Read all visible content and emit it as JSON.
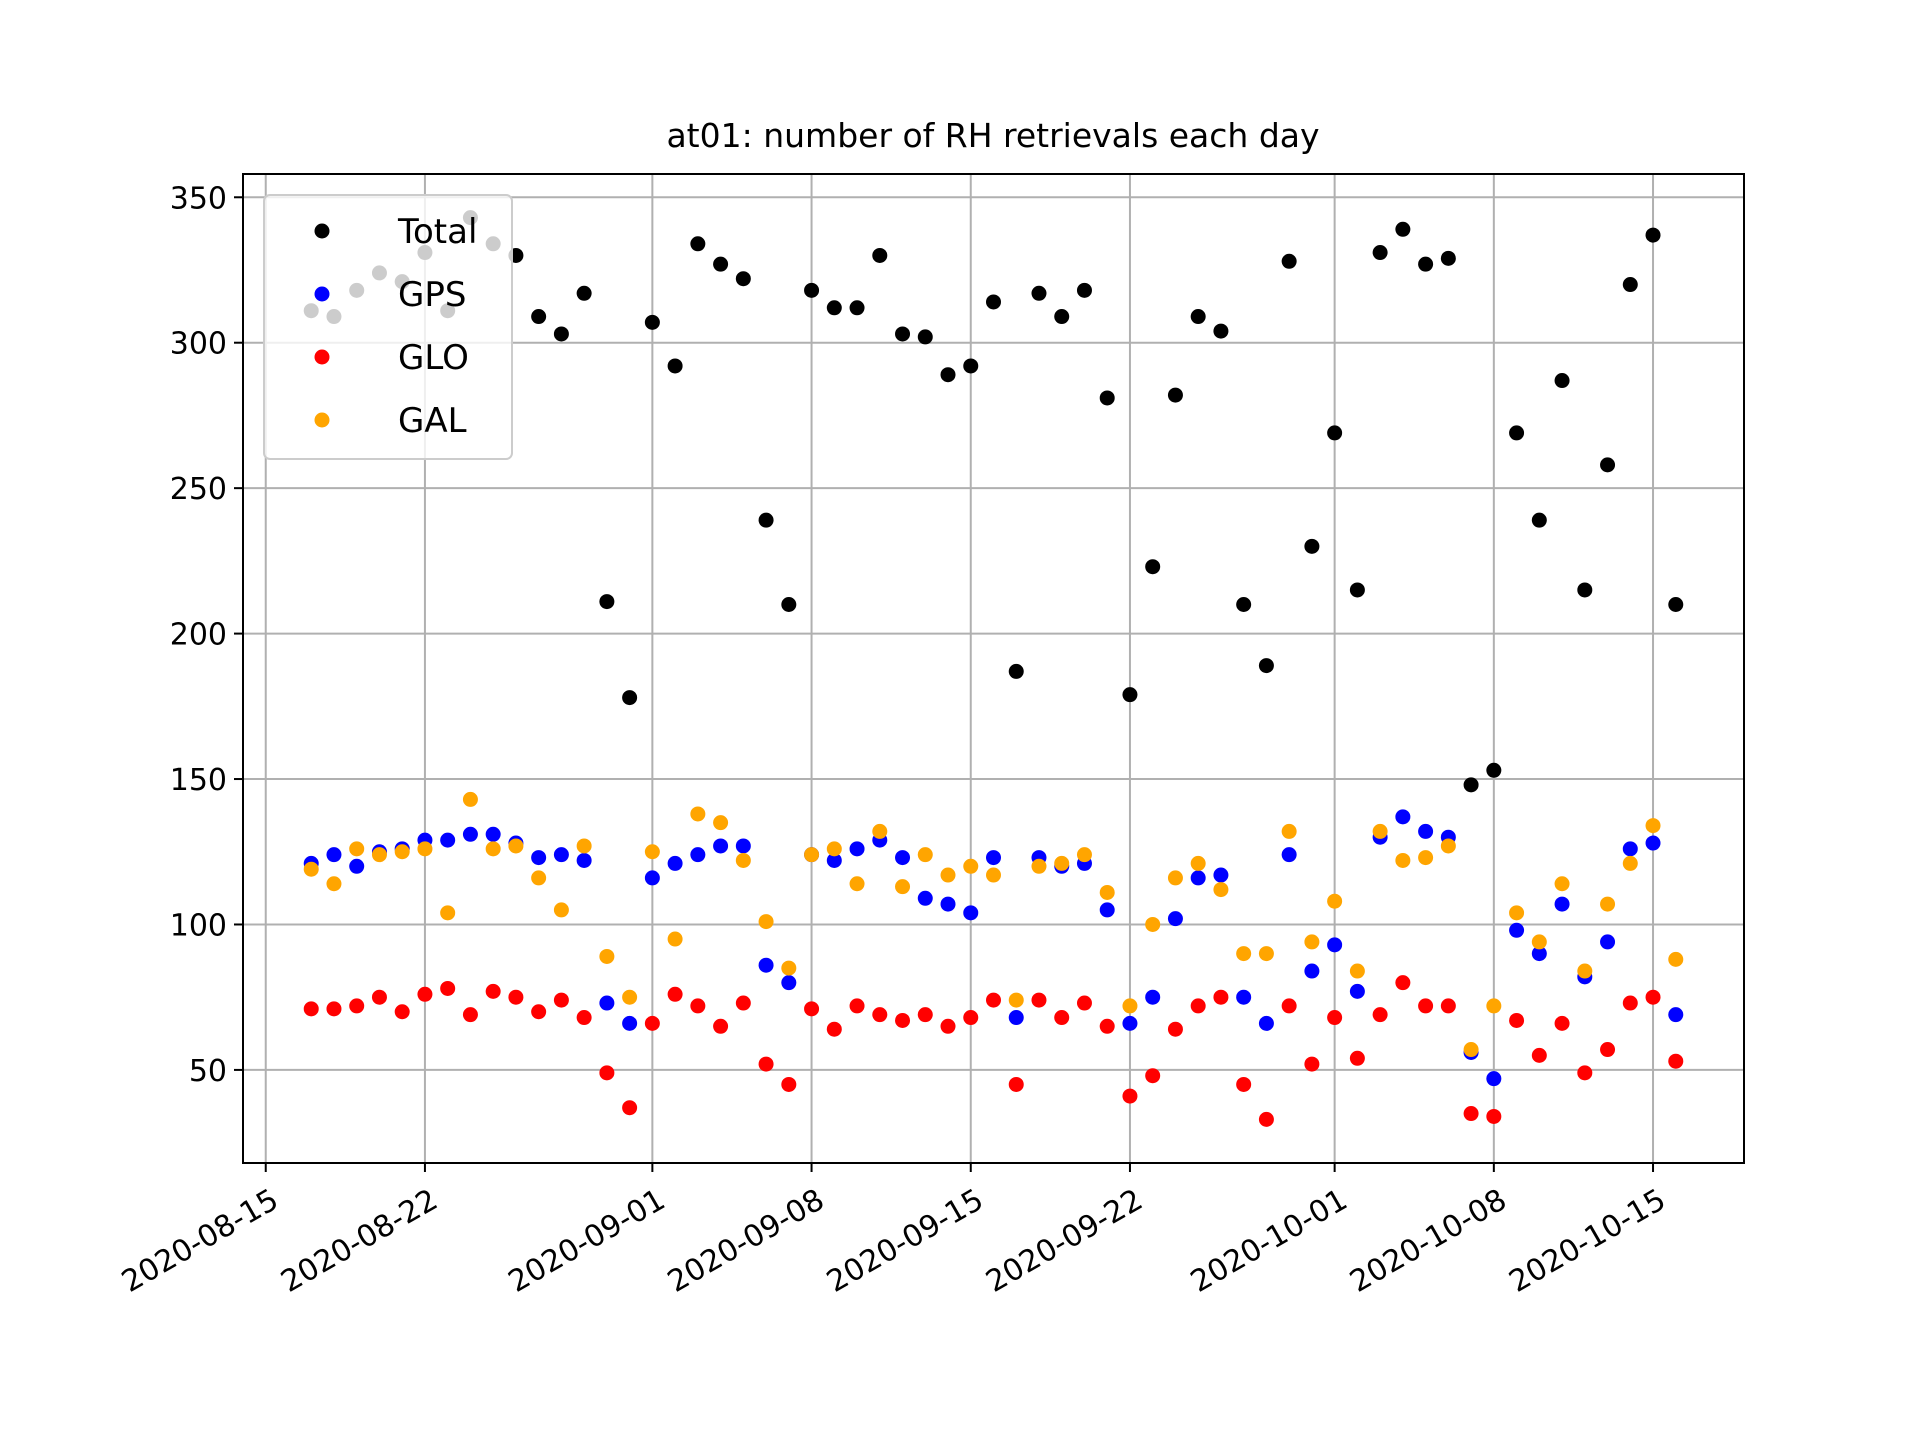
{
  "chart_data": {
    "type": "scatter",
    "title": "at01: number of RH retrievals each day",
    "xlabel": "",
    "ylabel": "",
    "x_type": "date",
    "xlim": [
      "2020-08-14",
      "2020-10-19"
    ],
    "ylim": [
      18,
      358
    ],
    "x_ticks": [
      "2020-08-15",
      "2020-08-22",
      "2020-09-01",
      "2020-09-08",
      "2020-09-15",
      "2020-09-22",
      "2020-10-01",
      "2020-10-08",
      "2020-10-15"
    ],
    "y_ticks": [
      50,
      100,
      150,
      200,
      250,
      300,
      350
    ],
    "grid": true,
    "legend_position": "upper-left",
    "x": [
      "2020-08-17",
      "2020-08-18",
      "2020-08-19",
      "2020-08-20",
      "2020-08-21",
      "2020-08-22",
      "2020-08-23",
      "2020-08-24",
      "2020-08-25",
      "2020-08-26",
      "2020-08-27",
      "2020-08-28",
      "2020-08-29",
      "2020-08-30",
      "2020-08-31",
      "2020-09-01",
      "2020-09-02",
      "2020-09-03",
      "2020-09-04",
      "2020-09-05",
      "2020-09-06",
      "2020-09-07",
      "2020-09-08",
      "2020-09-09",
      "2020-09-10",
      "2020-09-11",
      "2020-09-12",
      "2020-09-13",
      "2020-09-14",
      "2020-09-15",
      "2020-09-16",
      "2020-09-17",
      "2020-09-18",
      "2020-09-19",
      "2020-09-20",
      "2020-09-21",
      "2020-09-22",
      "2020-09-23",
      "2020-09-24",
      "2020-09-25",
      "2020-09-26",
      "2020-09-27",
      "2020-09-28",
      "2020-09-29",
      "2020-09-30",
      "2020-10-01",
      "2020-10-02",
      "2020-10-03",
      "2020-10-04",
      "2020-10-05",
      "2020-10-06",
      "2020-10-07",
      "2020-10-08",
      "2020-10-09",
      "2020-10-10",
      "2020-10-11",
      "2020-10-12",
      "2020-10-13",
      "2020-10-14",
      "2020-10-15",
      "2020-10-16"
    ],
    "series": [
      {
        "name": "Total",
        "color": "#000000",
        "values": [
          311,
          309,
          318,
          324,
          321,
          331,
          311,
          343,
          334,
          330,
          309,
          303,
          317,
          211,
          178,
          307,
          292,
          334,
          327,
          322,
          239,
          210,
          318,
          312,
          312,
          330,
          303,
          302,
          289,
          292,
          314,
          187,
          317,
          309,
          318,
          281,
          179,
          223,
          282,
          309,
          304,
          210,
          189,
          328,
          230,
          269,
          215,
          331,
          339,
          327,
          329,
          148,
          153,
          269,
          239,
          287,
          215,
          258,
          320,
          337,
          210
        ]
      },
      {
        "name": "GPS",
        "color": "#0000ff",
        "values": [
          121,
          124,
          120,
          125,
          126,
          129,
          129,
          131,
          131,
          128,
          123,
          124,
          122,
          73,
          66,
          116,
          121,
          124,
          127,
          127,
          86,
          80,
          124,
          122,
          126,
          129,
          123,
          109,
          107,
          104,
          123,
          68,
          123,
          120,
          121,
          105,
          66,
          75,
          102,
          116,
          117,
          75,
          66,
          124,
          84,
          93,
          77,
          130,
          137,
          132,
          130,
          56,
          47,
          98,
          90,
          107,
          82,
          94,
          126,
          128,
          69
        ]
      },
      {
        "name": "GLO",
        "color": "#ff0000",
        "values": [
          71,
          71,
          72,
          75,
          70,
          76,
          78,
          69,
          77,
          75,
          70,
          74,
          68,
          49,
          37,
          66,
          76,
          72,
          65,
          73,
          52,
          45,
          71,
          64,
          72,
          69,
          67,
          69,
          65,
          68,
          74,
          45,
          74,
          68,
          73,
          65,
          41,
          48,
          64,
          72,
          75,
          45,
          33,
          72,
          52,
          68,
          54,
          69,
          80,
          72,
          72,
          35,
          34,
          67,
          55,
          66,
          49,
          57,
          73,
          75,
          53
        ]
      },
      {
        "name": "GAL",
        "color": "#ffa500",
        "values": [
          119,
          114,
          126,
          124,
          125,
          126,
          104,
          143,
          126,
          127,
          116,
          105,
          127,
          89,
          75,
          125,
          95,
          138,
          135,
          122,
          101,
          85,
          124,
          126,
          114,
          132,
          113,
          124,
          117,
          120,
          117,
          74,
          120,
          121,
          124,
          111,
          72,
          100,
          116,
          121,
          112,
          90,
          90,
          132,
          94,
          108,
          84,
          132,
          122,
          123,
          127,
          57,
          72,
          104,
          94,
          114,
          84,
          107,
          121,
          134,
          88
        ]
      }
    ]
  }
}
